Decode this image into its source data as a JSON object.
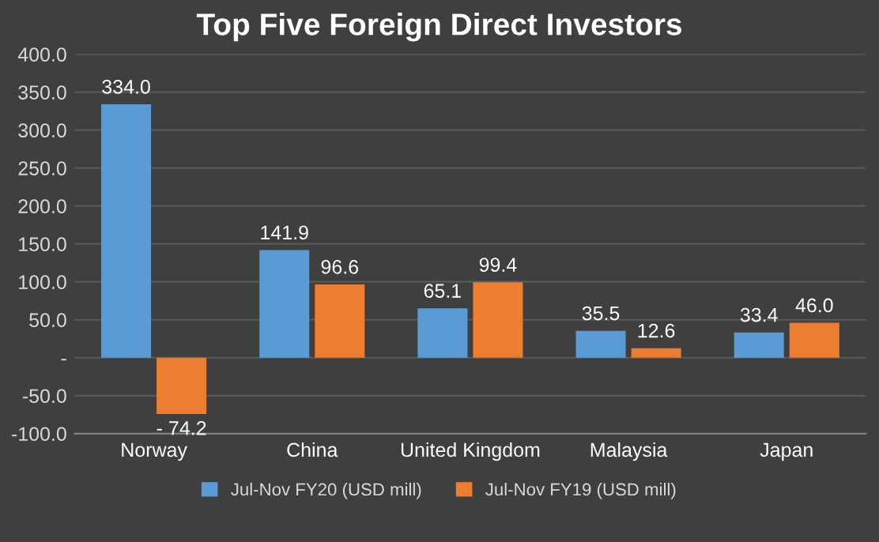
{
  "chart_data": {
    "type": "bar",
    "title": "Top Five Foreign Direct Investors",
    "categories": [
      "Norway",
      "China",
      "United Kingdom",
      "Malaysia",
      "Japan"
    ],
    "series": [
      {
        "name": "Jul-Nov FY20 (USD mill)",
        "color": "#5b9bd5",
        "values": [
          334.0,
          141.9,
          65.1,
          35.5,
          33.4
        ],
        "value_labels": [
          "334.0",
          "141.9",
          "65.1",
          "35.5",
          "33.4"
        ]
      },
      {
        "name": "Jul-Nov FY19 (USD mill)",
        "color": "#ed7d31",
        "values": [
          -74.2,
          96.6,
          99.4,
          12.6,
          46.0
        ],
        "value_labels": [
          "- 74.2",
          "96.6",
          "99.4",
          "12.6",
          "46.0"
        ]
      }
    ],
    "ylim": [
      -100,
      400
    ],
    "yticks": [
      {
        "value": -100,
        "label": "-100.0"
      },
      {
        "value": -50,
        "label": "-50.0"
      },
      {
        "value": 0,
        "label": "-"
      },
      {
        "value": 50,
        "label": "50.0"
      },
      {
        "value": 100,
        "label": "100.0"
      },
      {
        "value": 150,
        "label": "150.0"
      },
      {
        "value": 200,
        "label": "200.0"
      },
      {
        "value": 250,
        "label": "250.0"
      },
      {
        "value": 300,
        "label": "300.0"
      },
      {
        "value": 350,
        "label": "350.0"
      },
      {
        "value": 400,
        "label": "400.0"
      }
    ],
    "grid": "y",
    "legend": "bottom"
  }
}
